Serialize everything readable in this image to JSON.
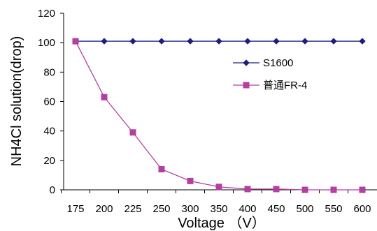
{
  "chart_data": {
    "type": "line",
    "title": "",
    "xlabel": "Voltage （V）",
    "ylabel": "NH4Cl solution(drop)",
    "categories": [
      "175",
      "200",
      "225",
      "250",
      "300",
      "350",
      "400",
      "450",
      "500",
      "550",
      "600"
    ],
    "ylim": [
      0,
      120
    ],
    "yticks": [
      "0",
      "20",
      "40",
      "60",
      "80",
      "100",
      "120"
    ],
    "grid": false,
    "legend_position": "right-middle",
    "series": [
      {
        "name": "S1600",
        "color": "#1f1f7a",
        "marker": "diamond",
        "values": [
          101,
          101,
          101,
          101,
          101,
          101,
          101,
          101,
          101,
          101,
          101
        ]
      },
      {
        "name": "普通FR-4",
        "color": "#b33fa0",
        "marker": "square",
        "values": [
          101,
          63,
          39,
          14,
          6,
          2,
          0.5,
          0.5,
          0,
          0,
          0
        ]
      }
    ]
  }
}
